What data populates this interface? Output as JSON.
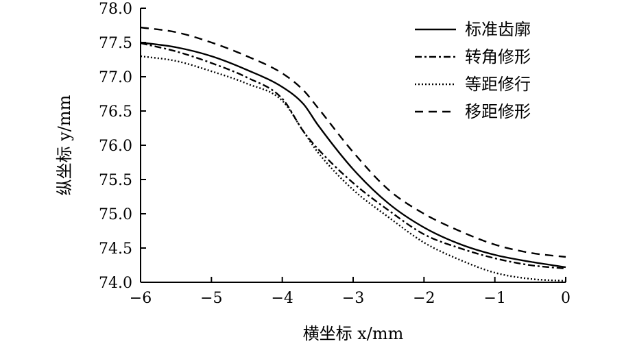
{
  "chart_data": {
    "type": "line",
    "title": "",
    "xlabel": "横坐标 x/mm",
    "ylabel": "纵坐标 y/mm",
    "xlim": [
      -6,
      0
    ],
    "ylim": [
      74.0,
      78.0
    ],
    "xticks": [
      -6,
      -5,
      -4,
      -3,
      -2,
      -1,
      0
    ],
    "yticks": [
      74.0,
      74.5,
      75.0,
      75.5,
      76.0,
      76.5,
      77.0,
      77.5,
      78.0
    ],
    "xtick_labels": [
      "−6",
      "−5",
      "−4",
      "−3",
      "−2",
      "−1",
      "0"
    ],
    "ytick_labels": [
      "74.0",
      "74.5",
      "75.0",
      "75.5",
      "76.0",
      "76.5",
      "77.0",
      "77.5",
      "78.0"
    ],
    "grid": false,
    "legend_position": "top-right",
    "x": [
      -6.0,
      -5.5,
      -5.0,
      -4.5,
      -4.0,
      -3.7,
      -3.5,
      -3.0,
      -2.5,
      -2.0,
      -1.5,
      -1.0,
      -0.5,
      0.0
    ],
    "series": [
      {
        "name": "标准齿廓",
        "line_style": "solid",
        "color": "#000000",
        "values": [
          77.5,
          77.43,
          77.3,
          77.1,
          76.85,
          76.6,
          76.3,
          75.65,
          75.15,
          74.8,
          74.56,
          74.4,
          74.3,
          74.22
        ]
      },
      {
        "name": "转角修形",
        "line_style": "dashdot",
        "color": "#000000",
        "values": [
          77.49,
          77.37,
          77.2,
          76.99,
          76.68,
          76.2,
          75.95,
          75.45,
          75.05,
          74.7,
          74.5,
          74.35,
          74.25,
          74.2
        ]
      },
      {
        "name": "等距修行",
        "line_style": "dotted",
        "color": "#000000",
        "values": [
          77.3,
          77.23,
          77.08,
          76.9,
          76.65,
          76.2,
          75.9,
          75.35,
          74.95,
          74.58,
          74.33,
          74.14,
          74.05,
          74.02
        ]
      },
      {
        "name": "移距修形",
        "line_style": "dashed",
        "color": "#000000",
        "values": [
          77.72,
          77.65,
          77.5,
          77.3,
          77.05,
          76.8,
          76.55,
          75.9,
          75.35,
          75.0,
          74.75,
          74.55,
          74.43,
          74.37
        ]
      }
    ]
  }
}
